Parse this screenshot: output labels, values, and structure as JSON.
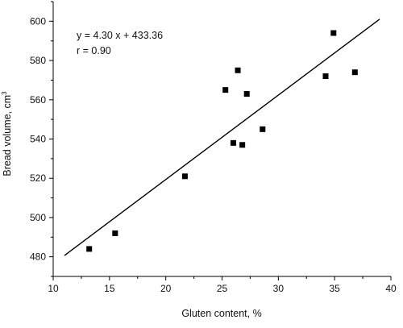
{
  "chart_data": {
    "type": "scatter",
    "title": "",
    "xlabel": "Gluten content, %",
    "ylabel": "Bread volume, cm",
    "ylabel_superscript": "3",
    "xlim": [
      10,
      40
    ],
    "ylim": [
      470,
      610
    ],
    "xticks": [
      10,
      15,
      20,
      25,
      30,
      35,
      40
    ],
    "yticks": [
      480,
      500,
      520,
      540,
      560,
      580,
      600
    ],
    "grid": false,
    "legend": "none",
    "marker": "square",
    "color": "#000000",
    "points": [
      {
        "x": 13.2,
        "y": 484
      },
      {
        "x": 15.5,
        "y": 492
      },
      {
        "x": 21.7,
        "y": 521
      },
      {
        "x": 25.3,
        "y": 565
      },
      {
        "x": 26.0,
        "y": 538
      },
      {
        "x": 26.4,
        "y": 575
      },
      {
        "x": 26.8,
        "y": 537
      },
      {
        "x": 27.2,
        "y": 563
      },
      {
        "x": 28.6,
        "y": 545
      },
      {
        "x": 34.2,
        "y": 572
      },
      {
        "x": 34.9,
        "y": 594
      },
      {
        "x": 36.8,
        "y": 574
      }
    ],
    "regression": {
      "slope": 4.3,
      "intercept": 433.36,
      "x_start": 11,
      "x_end": 39
    },
    "annotations": {
      "equation": "y = 4.30 x + 433.36",
      "r": "r = 0.90"
    }
  }
}
